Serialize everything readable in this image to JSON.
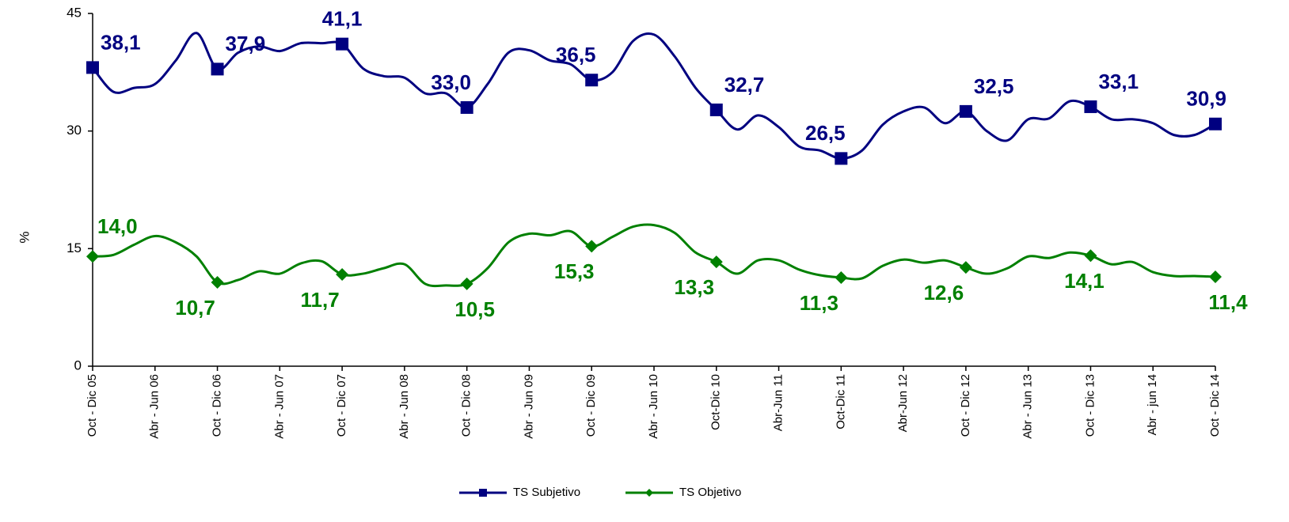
{
  "chart_data": {
    "type": "line",
    "ylabel": "%",
    "ylim": [
      0,
      45
    ],
    "yticks": [
      0,
      15,
      30,
      45
    ],
    "categories": [
      "Oct - Dic 05",
      null,
      null,
      "Abr - Jun 06",
      null,
      null,
      "Oct - Dic 06",
      null,
      null,
      "Abr - Jun 07",
      null,
      null,
      "Oct - Dic 07",
      null,
      null,
      "Abr - Jun 08",
      null,
      null,
      "Oct - Dic 08",
      null,
      null,
      "Abr - Jun 09",
      null,
      null,
      "Oct - Dic 09",
      null,
      null,
      "Abr - Jun 10",
      null,
      null,
      "Oct-Dic 10",
      null,
      null,
      "Abr-Jun 11",
      null,
      null,
      "Oct-Dic 11",
      null,
      null,
      "Abr-Jun 12",
      null,
      null,
      "Oct - Dic 12",
      null,
      null,
      "Abr - Jun 13",
      null,
      null,
      "Oct - Dic 13",
      null,
      null,
      "Abr - jun 14",
      null,
      null,
      "Oct - Dic 14"
    ],
    "series": [
      {
        "name": "TS Subjetivo",
        "color": "#000080",
        "values": [
          38.1,
          35,
          35.5,
          36,
          39,
          42.5,
          37.9,
          40,
          40.8,
          40.2,
          41.2,
          41.2,
          41.1,
          38,
          37,
          36.8,
          34.8,
          34.8,
          33.0,
          36,
          40,
          40.3,
          39,
          38.5,
          36.5,
          37.5,
          41.5,
          42.3,
          39.5,
          35.5,
          32.7,
          30.2,
          32,
          30.5,
          28,
          27.5,
          26.5,
          27.5,
          30.8,
          32.5,
          33,
          31,
          32.5,
          30,
          28.8,
          31.5,
          31.6,
          33.8,
          33.1,
          31.5,
          31.5,
          31,
          29.5,
          29.5,
          30.9
        ],
        "value_labels": [
          "38,1",
          null,
          null,
          null,
          null,
          null,
          "37,9",
          null,
          null,
          null,
          null,
          null,
          "41,1",
          null,
          null,
          null,
          null,
          null,
          "33,0",
          null,
          null,
          null,
          null,
          null,
          "36,5",
          null,
          null,
          null,
          null,
          null,
          "32,7",
          null,
          null,
          null,
          null,
          null,
          "26,5",
          null,
          null,
          null,
          null,
          null,
          "32,5",
          null,
          null,
          null,
          null,
          null,
          "33,1",
          null,
          null,
          null,
          null,
          null,
          "30,9"
        ]
      },
      {
        "name": "TS Objetivo",
        "color": "#008000",
        "values": [
          14.0,
          14.2,
          15.5,
          16.6,
          15.8,
          14,
          10.7,
          11,
          12.1,
          11.8,
          13.1,
          13.4,
          11.7,
          11.8,
          12.5,
          13,
          10.5,
          10.3,
          10.5,
          12.5,
          15.8,
          16.9,
          16.7,
          17.2,
          15.3,
          16.5,
          17.8,
          18,
          17,
          14.5,
          13.3,
          11.8,
          13.5,
          13.5,
          12.3,
          11.6,
          11.3,
          11.2,
          12.8,
          13.6,
          13.2,
          13.5,
          12.6,
          11.8,
          12.5,
          14,
          13.8,
          14.5,
          14.1,
          13,
          13.3,
          12,
          11.5,
          11.5,
          11.4
        ],
        "value_labels": [
          "14,0",
          null,
          null,
          null,
          null,
          null,
          "10,7",
          null,
          null,
          null,
          null,
          null,
          "11,7",
          null,
          null,
          null,
          null,
          null,
          "10,5",
          null,
          null,
          null,
          null,
          null,
          "15,3",
          null,
          null,
          null,
          null,
          null,
          "13,3",
          null,
          null,
          null,
          null,
          null,
          "11,3",
          null,
          null,
          null,
          null,
          null,
          "12,6",
          null,
          null,
          null,
          null,
          null,
          "14,1",
          null,
          null,
          null,
          null,
          null,
          "11,4"
        ]
      }
    ]
  }
}
